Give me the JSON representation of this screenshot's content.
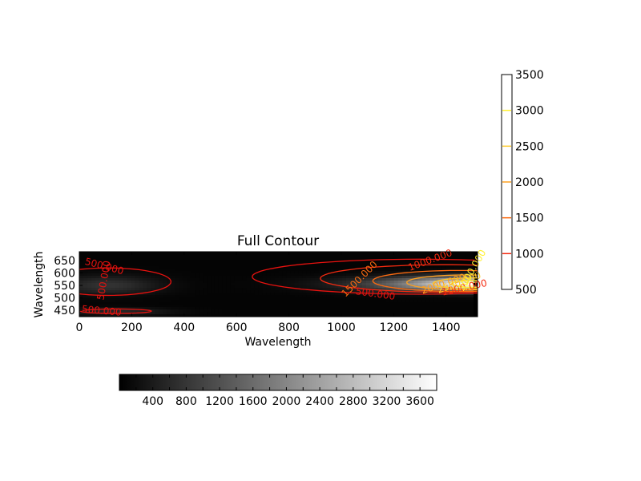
{
  "chart_data": {
    "type": "heatmap",
    "title": "Full Contour",
    "xlabel": "Wavelength",
    "ylabel": "Wavelength",
    "xlim": [
      0,
      1520
    ],
    "ylim": [
      425,
      685
    ],
    "x_ticks": [
      0,
      200,
      400,
      600,
      800,
      1000,
      1200,
      1400
    ],
    "y_ticks": [
      450,
      500,
      550,
      600,
      650
    ],
    "colormap": "gray",
    "intensity_peak": {
      "x": 1500,
      "y": 555,
      "value": 3800
    },
    "contour_levels": [
      500,
      1000,
      1500,
      2000,
      2500,
      3000,
      3500
    ],
    "contour_level_colors": {
      "500": "#e8120f",
      "1000": "#f42a10",
      "1500": "#fc6b10",
      "2000": "#fda020",
      "2500": "#fecb30",
      "3000": "#fff030",
      "3500": "#ffff80"
    },
    "contour_labels": [
      "500.000",
      "500.000",
      "500.000",
      "500.000",
      "1000.000",
      "1000.000",
      "1500.000",
      "2000.000",
      "2500.000",
      "3000.000"
    ],
    "contour_colorbar": {
      "orientation": "vertical",
      "placement": "right",
      "range": [
        500,
        3500
      ],
      "tick_labels": [
        "500",
        "1000",
        "1500",
        "2000",
        "2500",
        "3000",
        "3500"
      ]
    },
    "image_colorbar": {
      "orientation": "horizontal",
      "placement": "bottom",
      "range": [
        0,
        3800
      ],
      "tick_labels": [
        "400",
        "800",
        "1200",
        "1600",
        "2000",
        "2400",
        "2800",
        "3200",
        "3600"
      ]
    }
  }
}
